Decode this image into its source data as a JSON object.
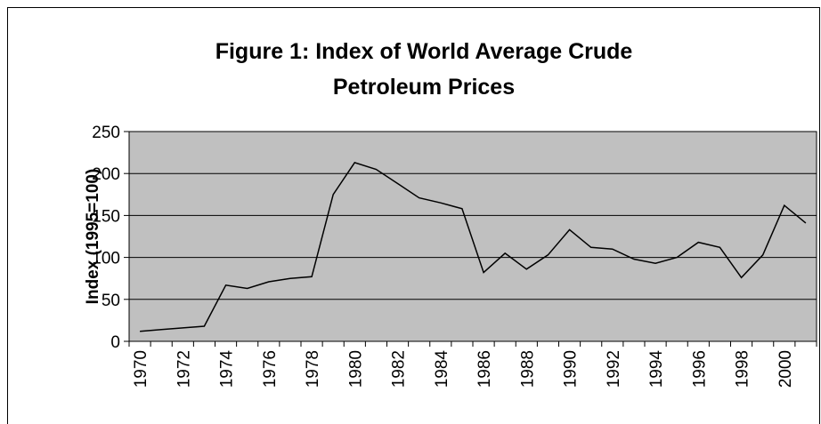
{
  "chart_data": {
    "type": "line",
    "title": [
      "Figure 1: Index of World Average Crude",
      "Petroleum Prices"
    ],
    "y_label": "Index (1995=100)",
    "categories": [
      "1970",
      null,
      "1972",
      null,
      "1974",
      null,
      "1976",
      null,
      "1978",
      null,
      "1980",
      null,
      "1982",
      null,
      "1984",
      null,
      "1986",
      null,
      "1988",
      null,
      "1990",
      null,
      "1992",
      null,
      "1994",
      null,
      "1996",
      null,
      "1998",
      null,
      "2000",
      null
    ],
    "values": [
      12,
      14,
      16,
      18,
      67,
      63,
      71,
      75,
      77,
      175,
      213,
      205,
      188,
      171,
      165,
      158,
      82,
      105,
      86,
      103,
      133,
      112,
      110,
      98,
      93,
      100,
      118,
      112,
      76,
      103,
      162,
      141
    ],
    "color": "#000000",
    "ylim": [
      0,
      250
    ],
    "yticks": [
      0,
      50,
      100,
      150,
      200,
      250
    ],
    "grid": true,
    "plot_background": "#c0c0c0"
  }
}
